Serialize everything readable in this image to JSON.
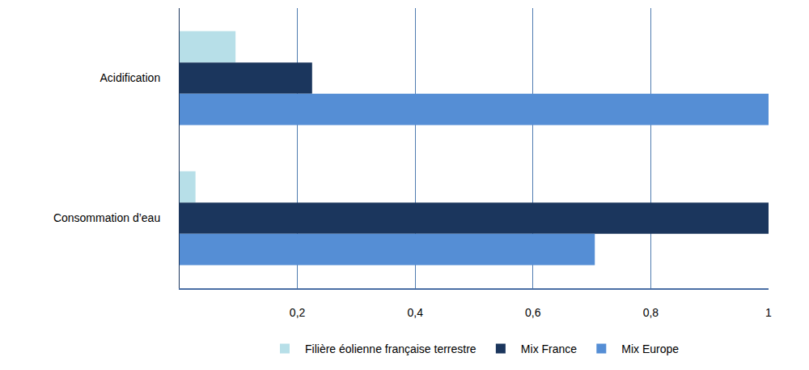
{
  "chart_data": {
    "type": "bar",
    "orientation": "horizontal",
    "categories": [
      "Acidification",
      "Consommation d’eau"
    ],
    "series": [
      {
        "name": "Filière éolienne française terrestre",
        "color": "#b7dfe8",
        "values": [
          0.095,
          0.027
        ]
      },
      {
        "name": "Mix France",
        "color": "#1b365d",
        "values": [
          0.225,
          1
        ]
      },
      {
        "name": "Mix Europe",
        "color": "#558ed5",
        "values": [
          1,
          0.705
        ]
      }
    ],
    "xlim": [
      0,
      1
    ],
    "xticks": [
      {
        "value": 0.2,
        "label": "0,2"
      },
      {
        "value": 0.4,
        "label": "0,4"
      },
      {
        "value": 0.6,
        "label": "0,6"
      },
      {
        "value": 0.8,
        "label": "0,8"
      },
      1
    ],
    "grid": true,
    "legend": "bottom"
  }
}
